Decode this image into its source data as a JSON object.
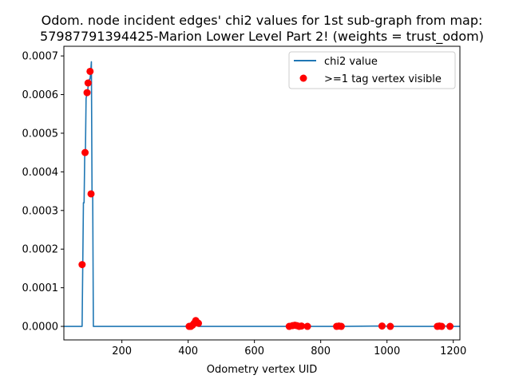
{
  "chart_data": {
    "type": "line",
    "title_line1": "Odom. node incident edges' chi2 values for 1st sub-graph from map:",
    "title_line2": "57987791394425-Marion Lower Level Part 2! (weights = trust_odom)",
    "xlabel": "Odometry vertex UID",
    "ylabel": "",
    "xlim": [
      25,
      1220
    ],
    "ylim": [
      -3.5e-05,
      0.000725
    ],
    "xticks": [
      200,
      400,
      600,
      800,
      1000,
      1200
    ],
    "yticks": [
      0.0,
      0.0001,
      0.0002,
      0.0003,
      0.0004,
      0.0005,
      0.0006,
      0.0007
    ],
    "ytick_labels": [
      "0.0000",
      "0.0001",
      "0.0002",
      "0.0003",
      "0.0004",
      "0.0005",
      "0.0006",
      "0.0007"
    ],
    "grid": false,
    "legend_position": "top-right",
    "series": [
      {
        "name": "chi2 value",
        "kind": "line",
        "color": "#1f77b4",
        "x": [
          25,
          80,
          82,
          84,
          86,
          88,
          90,
          92,
          94,
          96,
          98,
          100,
          102,
          104,
          106,
          108,
          110,
          112,
          114,
          120,
          400,
          402,
          404,
          406,
          408,
          410,
          412,
          414,
          416,
          418,
          420,
          422,
          424,
          426,
          428,
          430,
          432,
          700,
          705,
          710,
          715,
          720,
          725,
          730,
          735,
          740,
          745,
          750,
          760,
          845,
          850,
          855,
          860,
          865,
          985,
          1010,
          1150,
          1155,
          1160,
          1165,
          1170,
          1190,
          1220
        ],
        "y": [
          0.0,
          0.0,
          0.00016,
          0.00032,
          0.00032,
          0.00045,
          0.00045,
          0.00059,
          0.0006,
          0.0006,
          0.00062,
          0.00063,
          0.00064,
          0.00064,
          0.00066,
          0.000685,
          0.00034,
          0.00034,
          0.0,
          0.0,
          0.0,
          2e-06,
          0.0,
          4e-06,
          0.0,
          2e-06,
          5e-06,
          8e-06,
          1.2e-05,
          8e-06,
          1.5e-05,
          1.2e-05,
          1e-05,
          6e-06,
          1.2e-05,
          8e-06,
          0.0,
          0.0,
          2e-06,
          0.0,
          3e-06,
          4e-06,
          2e-06,
          0.0,
          1e-06,
          0.0,
          2e-06,
          0.0,
          0.0,
          0.0,
          1e-06,
          0.0,
          1e-06,
          0.0,
          1e-06,
          0.0,
          0.0,
          0.0,
          1e-06,
          0.0,
          1e-06,
          0.0,
          0.0
        ]
      },
      {
        "name": ">=1 tag vertex visible",
        "kind": "scatter",
        "color": "#ff0000",
        "x": [
          80,
          89,
          95,
          98,
          104,
          107,
          403,
          408,
          413,
          418,
          423,
          427,
          431,
          705,
          715,
          722,
          728,
          735,
          742,
          760,
          848,
          855,
          862,
          985,
          1010,
          1152,
          1158,
          1165,
          1190
        ],
        "y": [
          0.00016,
          0.00045,
          0.000605,
          0.00063,
          0.00066,
          0.000343,
          0.0,
          0.0,
          3e-06,
          8e-06,
          1.5e-05,
          1e-05,
          8e-06,
          0.0,
          2e-06,
          3e-06,
          2e-06,
          0.0,
          1e-06,
          0.0,
          0.0,
          1e-06,
          0.0,
          1e-06,
          0.0,
          0.0,
          1e-06,
          0.0,
          0.0
        ]
      }
    ]
  }
}
